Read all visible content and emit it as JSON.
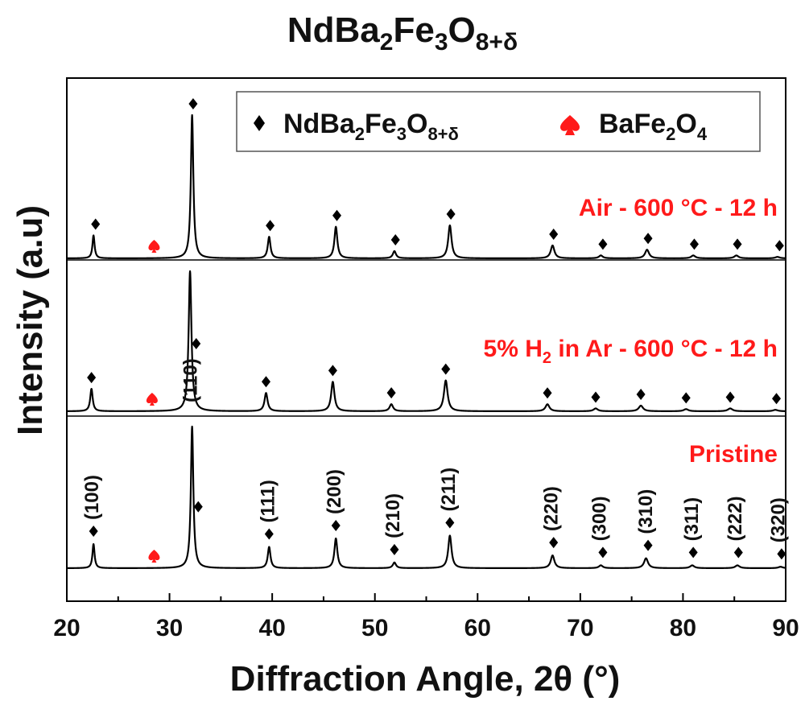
{
  "chart_data": {
    "type": "line",
    "title": {
      "base": "NdBa",
      "s1": "2",
      "m1": "Fe",
      "s2": "3",
      "m2": "O",
      "s3": "8+δ"
    },
    "xlabel": "Diffraction Angle, 2θ (°)",
    "ylabel": "Intensity (a.u)",
    "xlim": [
      20,
      90
    ],
    "xticks": [
      "20",
      "30",
      "40",
      "50",
      "60",
      "70",
      "80",
      "90"
    ],
    "legend": {
      "position": "top-right",
      "entries": [
        {
          "marker": "diamond",
          "color": "#000000",
          "base": "NdBa",
          "s1": "2",
          "m1": "Fe",
          "s2": "3",
          "m2": "O",
          "s3": "8+δ"
        },
        {
          "marker": "spade",
          "color": "#ff1a1a",
          "base": "BaFe",
          "s1": "2",
          "m1": "O",
          "s2": "4"
        }
      ]
    },
    "series": [
      {
        "name": "Air - 600 °C - 12 h",
        "label": "Air - 600 °C - 12 h",
        "color": "#000000",
        "peaks": [
          {
            "x": 22.6,
            "h": 0.16
          },
          {
            "x": 32.2,
            "h": 1.0
          },
          {
            "x": 39.7,
            "h": 0.15
          },
          {
            "x": 46.2,
            "h": 0.22
          },
          {
            "x": 51.9,
            "h": 0.05
          },
          {
            "x": 57.3,
            "h": 0.23
          },
          {
            "x": 67.3,
            "h": 0.09
          },
          {
            "x": 72.0,
            "h": 0.02
          },
          {
            "x": 76.5,
            "h": 0.06
          },
          {
            "x": 81.0,
            "h": 0.02
          },
          {
            "x": 85.2,
            "h": 0.02
          },
          {
            "x": 89.2,
            "h": 0.01
          }
        ],
        "perovskite_markers": [
          22.8,
          32.3,
          39.8,
          46.3,
          52.0,
          57.4,
          67.4,
          72.2,
          76.6,
          81.1,
          85.3,
          89.4
        ],
        "bafe2o4_markers": [
          28.5
        ]
      },
      {
        "name": "5% H2 in Ar - 600 °C - 12 h",
        "label": {
          "a": "5% H",
          "sub": "2",
          "b": " in Ar - 600 °C - 12 h"
        },
        "color": "#000000",
        "peaks": [
          {
            "x": 22.4,
            "h": 0.16
          },
          {
            "x": 32.0,
            "h": 1.0
          },
          {
            "x": 39.4,
            "h": 0.13
          },
          {
            "x": 45.9,
            "h": 0.21
          },
          {
            "x": 51.6,
            "h": 0.05
          },
          {
            "x": 56.9,
            "h": 0.22
          },
          {
            "x": 66.8,
            "h": 0.05
          },
          {
            "x": 71.5,
            "h": 0.02
          },
          {
            "x": 75.9,
            "h": 0.04
          },
          {
            "x": 80.3,
            "h": 0.015
          },
          {
            "x": 84.6,
            "h": 0.02
          },
          {
            "x": 89.0,
            "h": 0.01
          }
        ],
        "perovskite_markers": [
          22.4,
          32.6,
          39.4,
          45.9,
          51.6,
          56.9,
          66.8,
          71.5,
          75.9,
          80.3,
          84.6,
          89.1
        ],
        "bafe2o4_markers": [
          28.3
        ]
      },
      {
        "name": "Pristine",
        "label": "Pristine",
        "color": "#000000",
        "peaks": [
          {
            "x": 22.6,
            "h": 0.17
          },
          {
            "x": 32.2,
            "h": 1.0
          },
          {
            "x": 39.7,
            "h": 0.15
          },
          {
            "x": 46.2,
            "h": 0.21
          },
          {
            "x": 51.9,
            "h": 0.04
          },
          {
            "x": 57.3,
            "h": 0.23
          },
          {
            "x": 67.3,
            "h": 0.09
          },
          {
            "x": 72.0,
            "h": 0.02
          },
          {
            "x": 76.4,
            "h": 0.07
          },
          {
            "x": 80.9,
            "h": 0.02
          },
          {
            "x": 85.3,
            "h": 0.02
          },
          {
            "x": 89.5,
            "h": 0.01
          }
        ],
        "perovskite_markers": [
          22.6,
          32.8,
          39.7,
          46.2,
          51.9,
          57.3,
          67.4,
          72.2,
          76.6,
          81.0,
          85.4,
          89.6
        ],
        "bafe2o4_markers": [
          28.5
        ],
        "hkl_labels": [
          {
            "x": 22.6,
            "text": "(100)"
          },
          {
            "x": 32.2,
            "text": "(110)"
          },
          {
            "x": 39.7,
            "text": "(111)"
          },
          {
            "x": 46.2,
            "text": "(200)"
          },
          {
            "x": 51.9,
            "text": "(210)"
          },
          {
            "x": 57.3,
            "text": "(211)"
          },
          {
            "x": 67.3,
            "text": "(220)"
          },
          {
            "x": 72.0,
            "text": "(300)"
          },
          {
            "x": 76.5,
            "text": "(310)"
          },
          {
            "x": 81.0,
            "text": "(311)"
          },
          {
            "x": 85.2,
            "text": "(222)"
          },
          {
            "x": 89.4,
            "text": "(320)"
          }
        ]
      }
    ]
  }
}
